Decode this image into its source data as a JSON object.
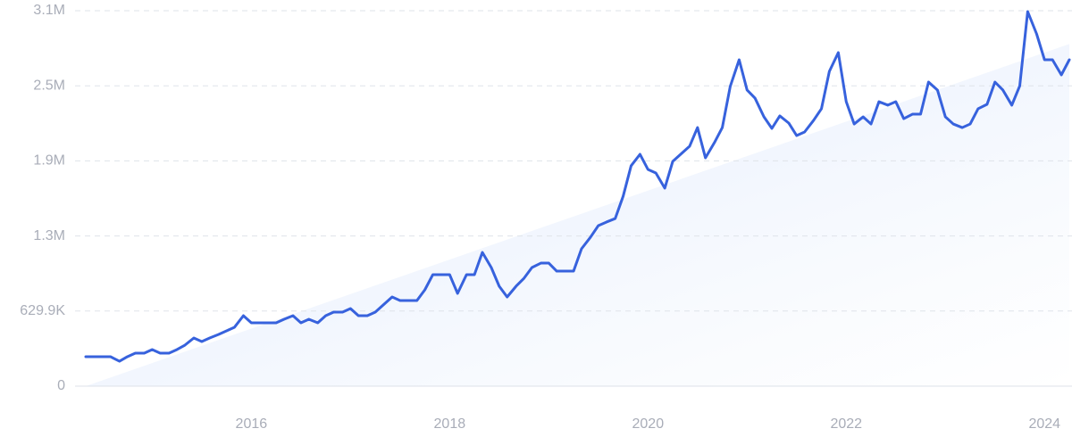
{
  "chart_data": {
    "type": "line",
    "x": [
      2014.33,
      2014.42,
      2014.5,
      2014.58,
      2014.67,
      2014.75,
      2014.83,
      2014.92,
      2015.0,
      2015.08,
      2015.17,
      2015.25,
      2015.33,
      2015.42,
      2015.5,
      2015.58,
      2015.67,
      2015.75,
      2015.83,
      2015.92,
      2016.0,
      2016.08,
      2016.17,
      2016.25,
      2016.33,
      2016.42,
      2016.5,
      2016.58,
      2016.67,
      2016.75,
      2016.83,
      2016.92,
      2017.0,
      2017.08,
      2017.17,
      2017.25,
      2017.33,
      2017.42,
      2017.5,
      2017.58,
      2017.67,
      2017.75,
      2017.83,
      2017.92,
      2018.0,
      2018.08,
      2018.17,
      2018.25,
      2018.33,
      2018.42,
      2018.5,
      2018.58,
      2018.67,
      2018.75,
      2018.83,
      2018.92,
      2019.0,
      2019.08,
      2019.17,
      2019.25,
      2019.33,
      2019.42,
      2019.5,
      2019.58,
      2019.67,
      2019.75,
      2019.83,
      2019.92,
      2020.0,
      2020.08,
      2020.17,
      2020.25,
      2020.33,
      2020.42,
      2020.5,
      2020.58,
      2020.67,
      2020.75,
      2020.83,
      2020.92,
      2021.0,
      2021.08,
      2021.17,
      2021.25,
      2021.33,
      2021.42,
      2021.5,
      2021.58,
      2021.67,
      2021.75,
      2021.83,
      2021.92,
      2022.0,
      2022.08,
      2022.17,
      2022.25,
      2022.33,
      2022.42,
      2022.5,
      2022.58,
      2022.67,
      2022.75,
      2022.83,
      2022.92,
      2023.0,
      2023.08,
      2023.17,
      2023.25,
      2023.33,
      2023.42,
      2023.5,
      2023.58,
      2023.67,
      2023.75,
      2023.83,
      2023.92,
      2024.0,
      2024.08,
      2024.17,
      2024.25
    ],
    "series": [
      {
        "color": "#3762dd",
        "values": [
          247000,
          247000,
          247000,
          247000,
          209000,
          247000,
          277000,
          277000,
          307000,
          277000,
          277000,
          307000,
          344000,
          404000,
          374000,
          404000,
          434000,
          464000,
          494000,
          591000,
          531000,
          531000,
          531000,
          531000,
          561000,
          591000,
          531000,
          561000,
          531000,
          591000,
          621000,
          621000,
          651000,
          591000,
          591000,
          621000,
          681000,
          748000,
          718000,
          718000,
          718000,
          808000,
          935000,
          935000,
          935000,
          778000,
          935000,
          935000,
          1122000,
          995000,
          838000,
          748000,
          838000,
          905000,
          995000,
          1032000,
          1032000,
          965000,
          965000,
          965000,
          1152000,
          1249000,
          1347000,
          1376000,
          1406000,
          1593000,
          1848000,
          1945000,
          1818000,
          1788000,
          1661000,
          1885000,
          1945000,
          2012000,
          2169000,
          1915000,
          2042000,
          2169000,
          2514000,
          2738000,
          2484000,
          2416000,
          2259000,
          2162000,
          2267000,
          2207000,
          2102000,
          2132000,
          2229000,
          2327000,
          2641000,
          2798000,
          2386000,
          2199000,
          2259000,
          2199000,
          2386000,
          2357000,
          2386000,
          2244000,
          2282000,
          2282000,
          2551000,
          2484000,
          2259000,
          2199000,
          2169000,
          2199000,
          2327000,
          2364000,
          2551000,
          2484000,
          2357000,
          2519000,
          3142000,
          2955000,
          2738000,
          2738000,
          2611000,
          2738000
        ]
      }
    ],
    "trend": {
      "color": "#dbe7fb",
      "x": [
        2014.33,
        2024.25
      ],
      "values": [
        0,
        2870000
      ]
    },
    "xlim": [
      2014.33,
      2024.25
    ],
    "xticks": [
      2016,
      2018,
      2020,
      2022,
      2024
    ],
    "ylim": [
      0,
      3149500
    ],
    "yticks": [
      0,
      {
        "value": 629900,
        "label": "629.9K"
      },
      {
        "value": 1259800,
        "label": "1.3M"
      },
      {
        "value": 1889700,
        "label": "1.9M"
      },
      {
        "value": 2519600,
        "label": "2.5M"
      },
      {
        "value": 3149500,
        "label": "3.1M"
      }
    ],
    "grid": true
  }
}
